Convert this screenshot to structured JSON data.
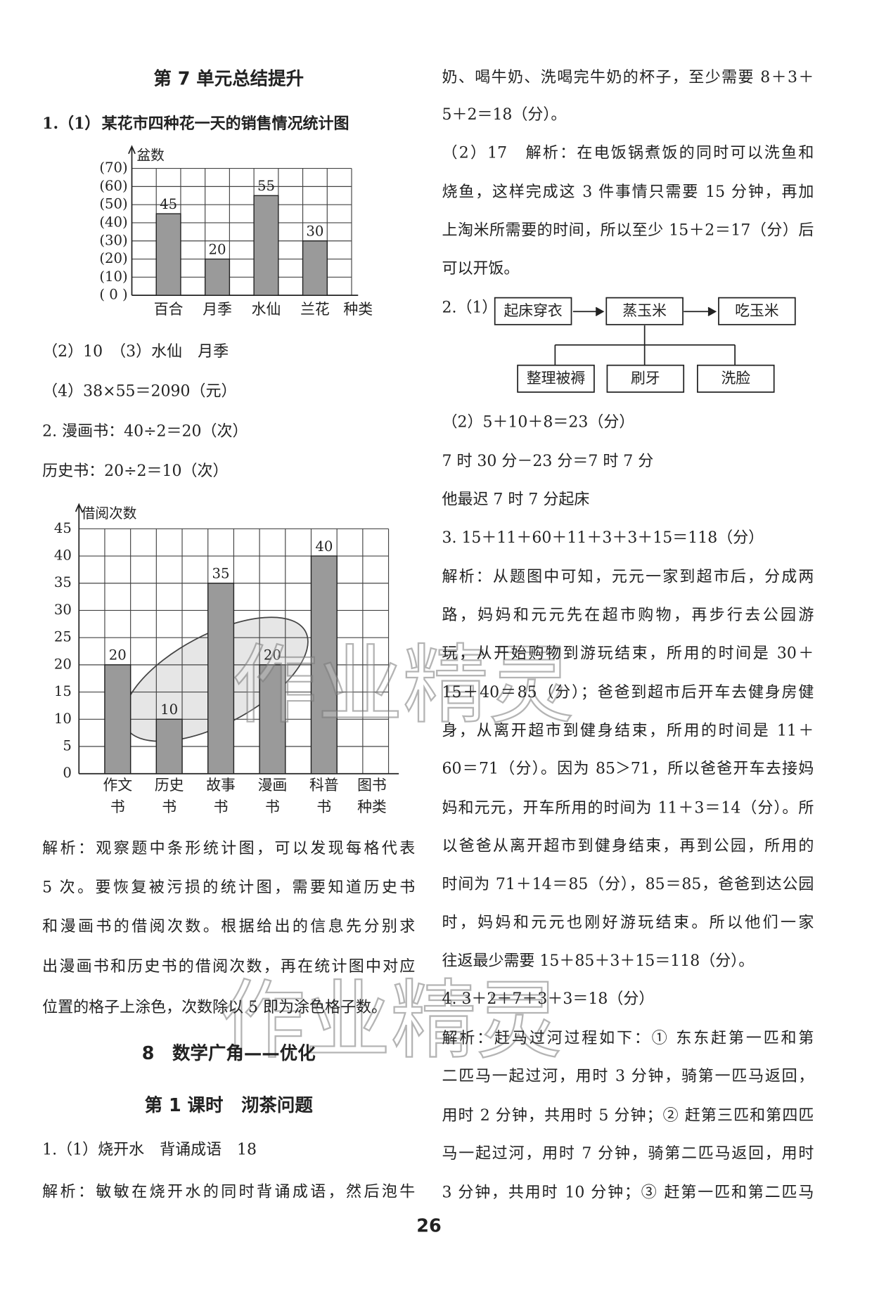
{
  "chart_data": [
    {
      "type": "bar",
      "title": "某花市四种花一天的销售情况统计图",
      "y_label": "盆数",
      "x_label": "种类",
      "categories": [
        "百合",
        "月季",
        "水仙",
        "兰花"
      ],
      "values": [
        45,
        20,
        55,
        30
      ],
      "color": "#9a9a9a",
      "ylim": [
        0,
        70
      ],
      "yticks": [
        {
          "value": 0,
          "label": "( 0 )"
        },
        {
          "value": 10,
          "label": "(10)"
        },
        {
          "value": 20,
          "label": "(20)"
        },
        {
          "value": 30,
          "label": "(30)"
        },
        {
          "value": 40,
          "label": "(40)"
        },
        {
          "value": 50,
          "label": "(50)"
        },
        {
          "value": 60,
          "label": "(60)"
        },
        {
          "value": 70,
          "label": "(70)"
        }
      ],
      "grid": true
    },
    {
      "type": "bar",
      "y_label": "借阅次数",
      "x_label": "图书种类",
      "categories": [
        "作文书",
        "历史书",
        "故事书",
        "漫画书",
        "科普书"
      ],
      "values": [
        20,
        10,
        35,
        20,
        40
      ],
      "color": "#9a9a9a",
      "ylim": [
        0,
        45
      ],
      "yticks": [
        0,
        5,
        10,
        15,
        20,
        25,
        30,
        35,
        40,
        45
      ],
      "grid": true
    }
  ],
  "document": {
    "question_label": "1.（1）",
    "left_lines": [
      "第 7 单元总结提升",
      "（2）10　（3）水仙　月季",
      "（4）38×55＝2090（元）",
      "2.  漫画书：40÷2＝20（次）",
      "历史书：20÷2＝10（次）",
      "解析：观察题中条形统计图，可以发现每格代表",
      "5 次。要恢复被污损的统计图，需要知道历史书",
      "和漫画书的借阅次数。根据给出的信息先分别求",
      "出漫画书和历史书的借阅次数，再在统计图中对应",
      "位置的格子上涂色，次数除以 5 即为涂色格子数。",
      "8　数学广角——优化",
      "第 1 课时　沏茶问题",
      "1.（1）烧开水　背诵成语　18",
      "解析：敏敏在烧开水的同时背诵成语，然后泡牛"
    ],
    "right_lines": [
      "奶、喝牛奶、洗喝完牛奶的杯子，至少需要 8＋3＋",
      "5＋2＝18（分）。",
      "（2）17　解析：在电饭锅煮饭的同时可以洗鱼和",
      "烧鱼，这样完成这 3 件事情只需要 15 分钟，再加",
      "上淘米所需要的时间，所以至少 15＋2＝17（分）后",
      "可以开饭。",
      "2.（1）",
      "（2）5＋10＋8＝23（分）",
      "7 时 30 分－23 分＝7 时 7 分",
      "他最迟 7 时 7 分起床",
      "3.  15＋11＋60＋11＋3＋3＋15＝118（分）",
      "解析：从题图中可知，元元一家到超市后，分成两",
      "路，妈妈和元元先在超市购物，再步行去公园游",
      "玩，从开始购物到游玩结束，所用的时间是 30＋",
      "15＋40＝85（分）；爸爸到超市后开车去健身房健",
      "身，从离开超市到健身结束，所用的时间是 11＋",
      "60＝71（分）。因为 85＞71，所以爸爸开车去接妈",
      "妈和元元，开车所用的时间为 11＋3＝14（分）。所",
      "以爸爸从离开超市到健身结束，再到公园，所用的",
      "时间为 71＋14＝85（分），85＝85，爸爸到达公园",
      "时，妈妈和元元也刚好游玩结束。所以他们一家",
      "往返最少需要 15＋85＋3＋15＝118（分）。",
      "4.  3＋2＋7＋3＋3＝18（分）",
      "解析：赶马过河过程如下：① 东东赶第一匹和第",
      "二匹马一起过河，用时 3 分钟，骑第一匹马返回，",
      "用时 2 分钟，共用时 5 分钟；② 赶第三匹和第四匹",
      "马一起过河，用时 7 分钟，骑第二匹马返回，用时",
      "3 分钟，共用时 10 分钟；③ 赶第一匹和第二匹马"
    ],
    "flowchart": {
      "nodes": [
        "起床穿衣",
        "蒸玉米",
        "吃玉米",
        "整理被褥",
        "刷牙",
        "洗脸"
      ]
    },
    "watermark": "作业精灵",
    "page_number": "26"
  }
}
